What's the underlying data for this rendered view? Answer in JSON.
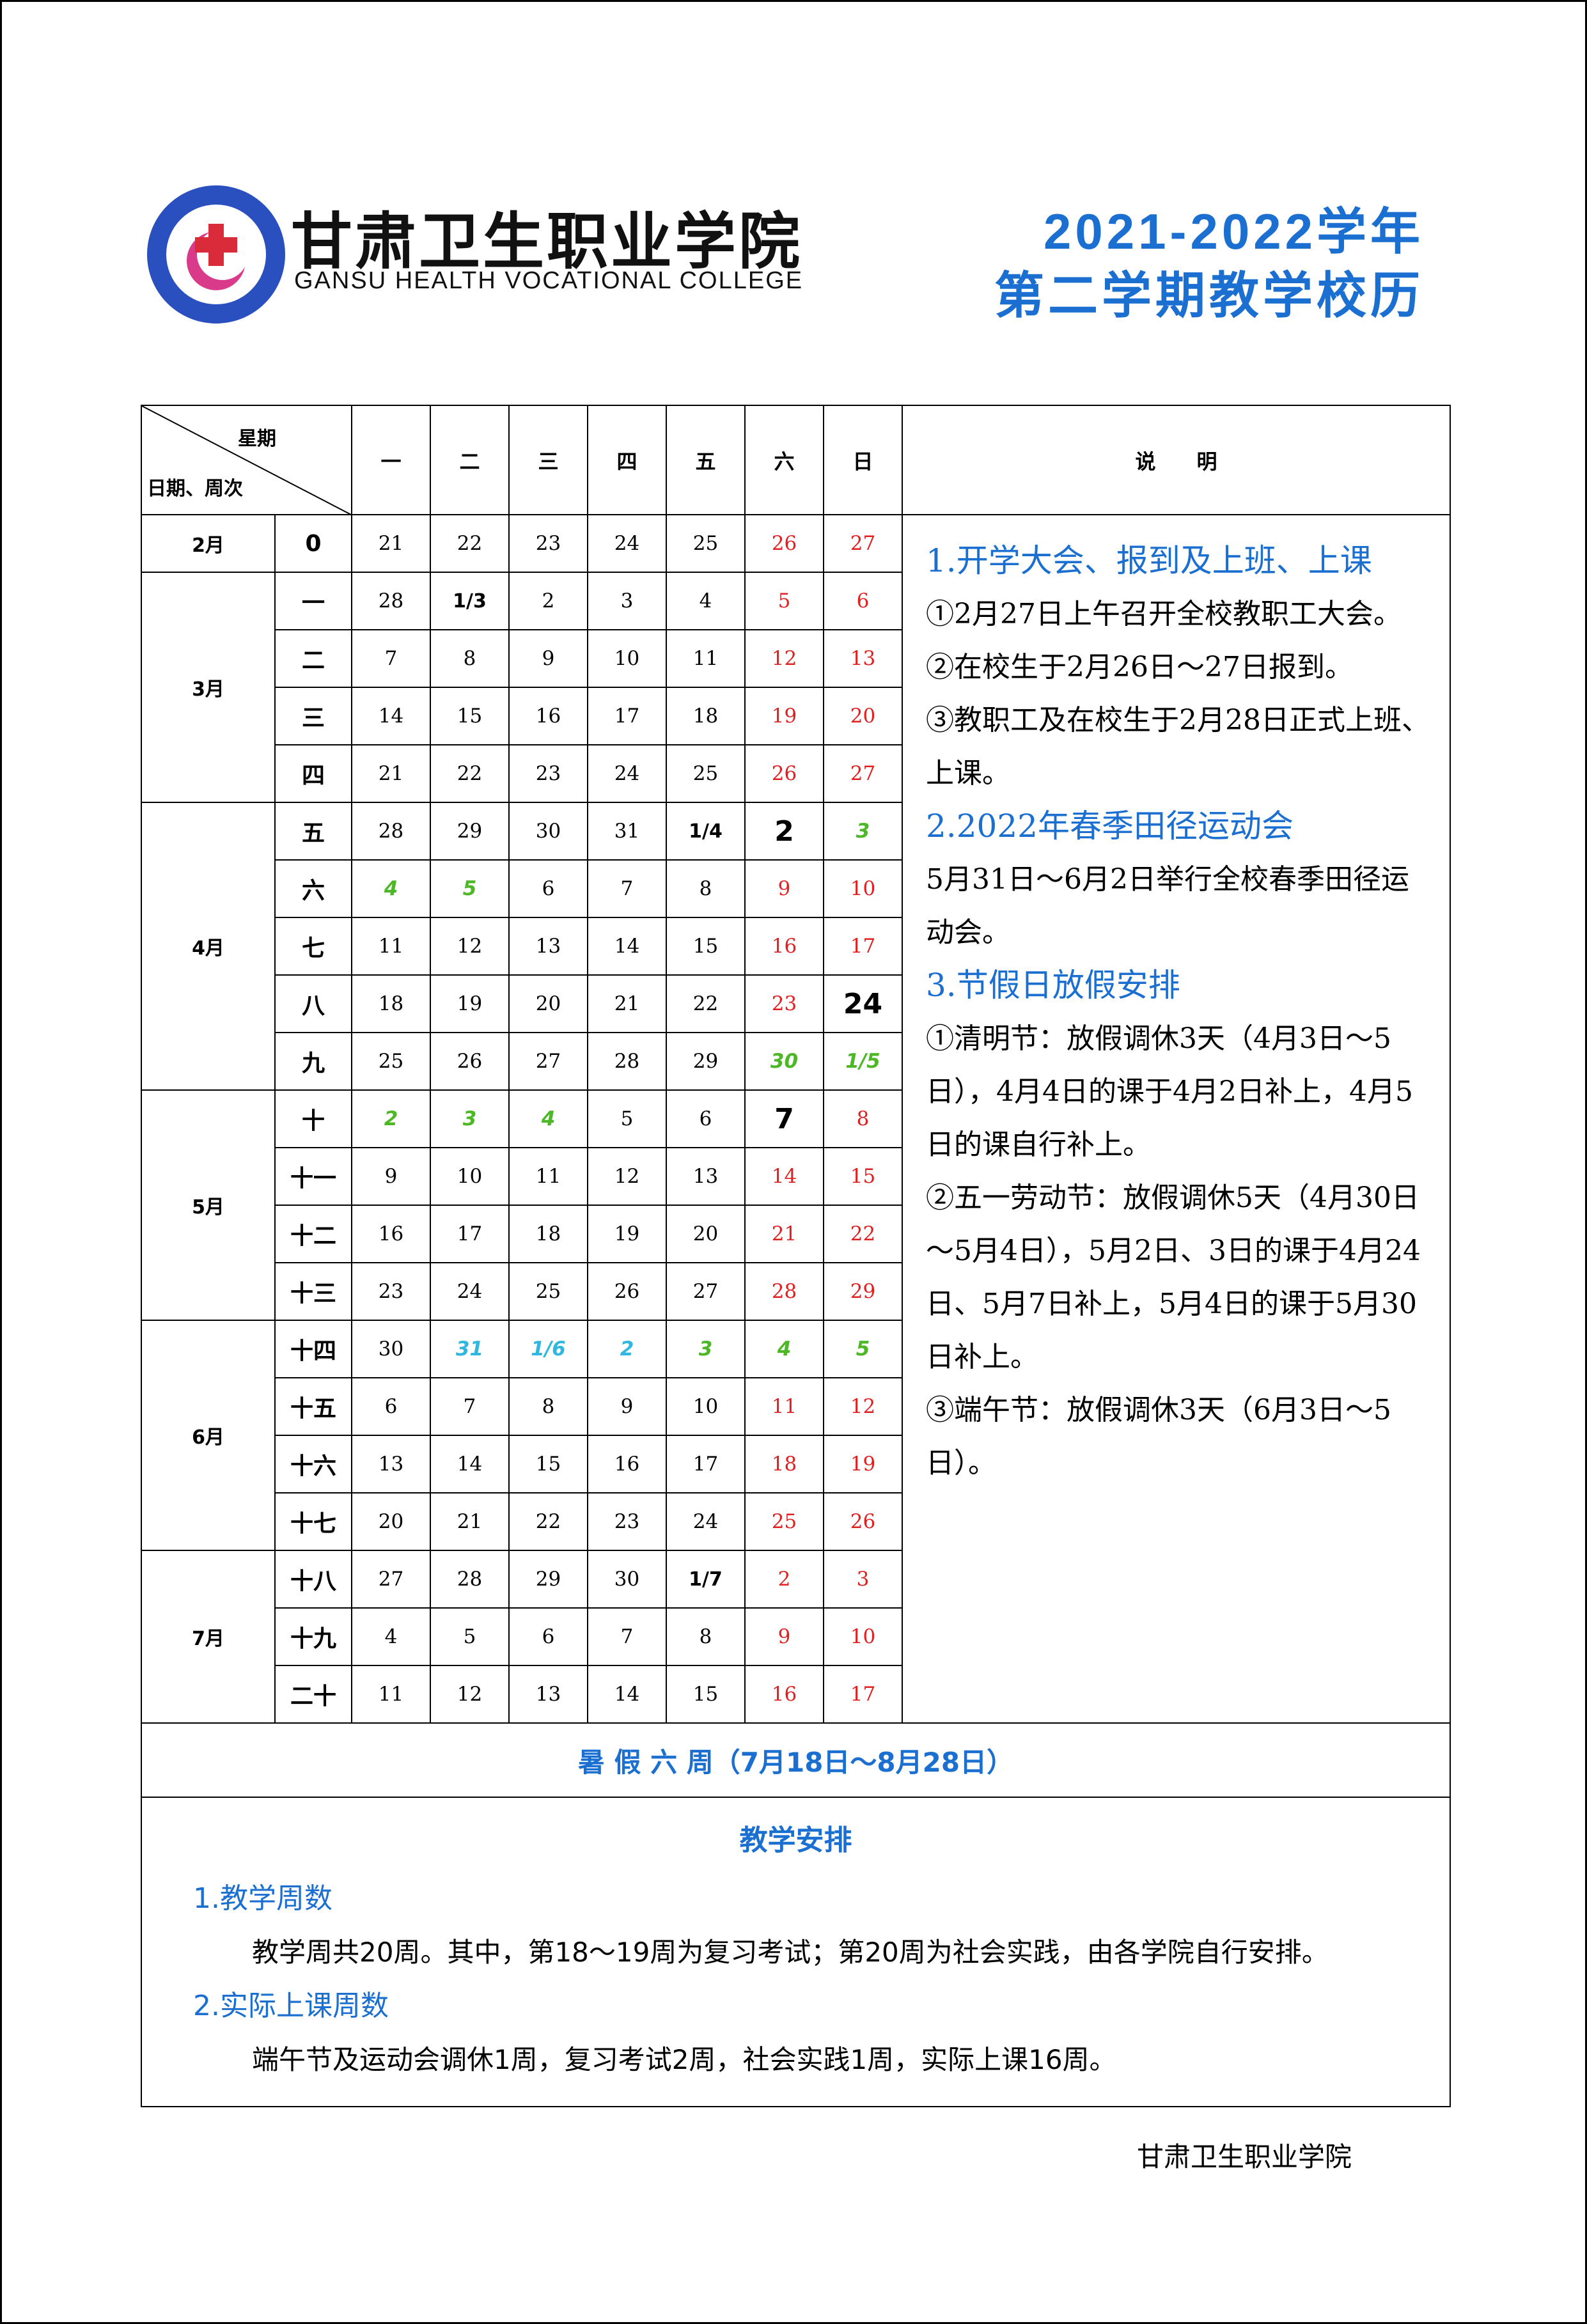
{
  "header": {
    "school_name": "甘肃卫生职业学院",
    "school_name_en": "GANSU HEALTH VOCATIONAL COLLEGE",
    "title_line1": "2021-2022学年",
    "title_line2": "第二学期教学校历"
  },
  "table": {
    "corner_top": "星期",
    "corner_bottom": "日期、周次",
    "weekdays": [
      "一",
      "二",
      "三",
      "四",
      "五",
      "六",
      "日"
    ],
    "notes_header": "说　　明",
    "months": [
      {
        "label": "2月",
        "weeks": [
          {
            "week": "0",
            "days": [
              "21",
              "22",
              "23",
              "24",
              "25",
              "26",
              "27"
            ],
            "kinds": [
              "workday",
              "workday",
              "workday",
              "workday",
              "workday",
              "weekend",
              "weekend"
            ]
          }
        ]
      },
      {
        "label": "3月",
        "weeks": [
          {
            "week": "一",
            "days": [
              "28",
              "1/3",
              "2",
              "3",
              "4",
              "5",
              "6"
            ],
            "kinds": [
              "workday",
              "month-start",
              "workday",
              "workday",
              "workday",
              "weekend",
              "weekend"
            ]
          },
          {
            "week": "二",
            "days": [
              "7",
              "8",
              "9",
              "10",
              "11",
              "12",
              "13"
            ],
            "kinds": [
              "workday",
              "workday",
              "workday",
              "workday",
              "workday",
              "weekend",
              "weekend"
            ]
          },
          {
            "week": "三",
            "days": [
              "14",
              "15",
              "16",
              "17",
              "18",
              "19",
              "20"
            ],
            "kinds": [
              "workday",
              "workday",
              "workday",
              "workday",
              "workday",
              "weekend",
              "weekend"
            ]
          },
          {
            "week": "四",
            "days": [
              "21",
              "22",
              "23",
              "24",
              "25",
              "26",
              "27"
            ],
            "kinds": [
              "workday",
              "workday",
              "workday",
              "workday",
              "workday",
              "weekend",
              "weekend"
            ]
          }
        ]
      },
      {
        "label": "4月",
        "weeks": [
          {
            "week": "五",
            "days": [
              "28",
              "29",
              "30",
              "31",
              "1/4",
              "2",
              "3"
            ],
            "kinds": [
              "workday",
              "workday",
              "workday",
              "workday",
              "month-start",
              "makeup",
              "holiday"
            ]
          },
          {
            "week": "六",
            "days": [
              "4",
              "5",
              "6",
              "7",
              "8",
              "9",
              "10"
            ],
            "kinds": [
              "holiday",
              "holiday",
              "workday",
              "workday",
              "workday",
              "weekend",
              "weekend"
            ]
          },
          {
            "week": "七",
            "days": [
              "11",
              "12",
              "13",
              "14",
              "15",
              "16",
              "17"
            ],
            "kinds": [
              "workday",
              "workday",
              "workday",
              "workday",
              "workday",
              "weekend",
              "weekend"
            ]
          },
          {
            "week": "八",
            "days": [
              "18",
              "19",
              "20",
              "21",
              "22",
              "23",
              "24"
            ],
            "kinds": [
              "workday",
              "workday",
              "workday",
              "workday",
              "workday",
              "weekend",
              "makeup"
            ]
          },
          {
            "week": "九",
            "days": [
              "25",
              "26",
              "27",
              "28",
              "29",
              "30",
              "1/5"
            ],
            "kinds": [
              "workday",
              "workday",
              "workday",
              "workday",
              "workday",
              "holiday",
              "holiday"
            ]
          }
        ]
      },
      {
        "label": "5月",
        "weeks": [
          {
            "week": "十",
            "days": [
              "2",
              "3",
              "4",
              "5",
              "6",
              "7",
              "8"
            ],
            "kinds": [
              "holiday",
              "holiday",
              "holiday",
              "workday",
              "workday",
              "makeup",
              "weekend"
            ]
          },
          {
            "week": "十一",
            "days": [
              "9",
              "10",
              "11",
              "12",
              "13",
              "14",
              "15"
            ],
            "kinds": [
              "workday",
              "workday",
              "workday",
              "workday",
              "workday",
              "weekend",
              "weekend"
            ]
          },
          {
            "week": "十二",
            "days": [
              "16",
              "17",
              "18",
              "19",
              "20",
              "21",
              "22"
            ],
            "kinds": [
              "workday",
              "workday",
              "workday",
              "workday",
              "workday",
              "weekend",
              "weekend"
            ]
          },
          {
            "week": "十三",
            "days": [
              "23",
              "24",
              "25",
              "26",
              "27",
              "28",
              "29"
            ],
            "kinds": [
              "workday",
              "workday",
              "workday",
              "workday",
              "workday",
              "weekend",
              "weekend"
            ]
          }
        ]
      },
      {
        "label": "6月",
        "weeks": [
          {
            "week": "十四",
            "days": [
              "30",
              "31",
              "1/6",
              "2",
              "3",
              "4",
              "5"
            ],
            "kinds": [
              "workday",
              "sports",
              "sports",
              "sports",
              "holiday",
              "holiday",
              "holiday"
            ]
          },
          {
            "week": "十五",
            "days": [
              "6",
              "7",
              "8",
              "9",
              "10",
              "11",
              "12"
            ],
            "kinds": [
              "workday",
              "workday",
              "workday",
              "workday",
              "workday",
              "weekend",
              "weekend"
            ]
          },
          {
            "week": "十六",
            "days": [
              "13",
              "14",
              "15",
              "16",
              "17",
              "18",
              "19"
            ],
            "kinds": [
              "workday",
              "workday",
              "workday",
              "workday",
              "workday",
              "weekend",
              "weekend"
            ]
          },
          {
            "week": "十七",
            "days": [
              "20",
              "21",
              "22",
              "23",
              "24",
              "25",
              "26"
            ],
            "kinds": [
              "workday",
              "workday",
              "workday",
              "workday",
              "workday",
              "weekend",
              "weekend"
            ]
          }
        ]
      },
      {
        "label": "7月",
        "weeks": [
          {
            "week": "十八",
            "days": [
              "27",
              "28",
              "29",
              "30",
              "1/7",
              "2",
              "3"
            ],
            "kinds": [
              "workday",
              "workday",
              "workday",
              "workday",
              "month-start",
              "weekend",
              "weekend"
            ]
          },
          {
            "week": "十九",
            "days": [
              "4",
              "5",
              "6",
              "7",
              "8",
              "9",
              "10"
            ],
            "kinds": [
              "workday",
              "workday",
              "workday",
              "workday",
              "workday",
              "weekend",
              "weekend"
            ]
          },
          {
            "week": "二十",
            "days": [
              "11",
              "12",
              "13",
              "14",
              "15",
              "16",
              "17"
            ],
            "kinds": [
              "workday",
              "workday",
              "workday",
              "workday",
              "workday",
              "weekend",
              "weekend"
            ]
          }
        ]
      }
    ]
  },
  "notes": {
    "sections": [
      {
        "heading": "1.开学大会、报到及上班、上课",
        "lines": [
          "①2月27日上午召开全校教职工大会。",
          "②在校生于2月26日～27日报到。",
          "③教职工及在校生于2月28日正式上班、上课。"
        ]
      },
      {
        "heading": "2.2022年春季田径运动会",
        "lines": [
          "5月31日～6月2日举行全校春季田径运动会。"
        ]
      },
      {
        "heading": "3.节假日放假安排",
        "lines": [
          "①清明节：放假调休3天（4月3日～5日），4月4日的课于4月2日补上，4月5日的课自行补上。",
          "②五一劳动节：放假调休5天（4月30日～5月4日），5月2日、3日的课于4月24日、5月7日补上，5月4日的课于5月30日补上。",
          "③端午节：放假调休3天（6月3日～5日）。"
        ]
      }
    ]
  },
  "summer": "暑 假 六 周（7月18日～8月28日）",
  "arrangement": {
    "title": "教学安排",
    "items": [
      {
        "heading": "1.教学周数",
        "text": "教学周共20周。其中，第18～19周为复习考试；第20周为社会实践，由各学院自行安排。"
      },
      {
        "heading": "2.实际上课周数",
        "text": "端午节及运动会调休1周，复习考试2周，社会实践1周，实际上课16周。"
      }
    ]
  },
  "footer": "甘肃卫生职业学院"
}
